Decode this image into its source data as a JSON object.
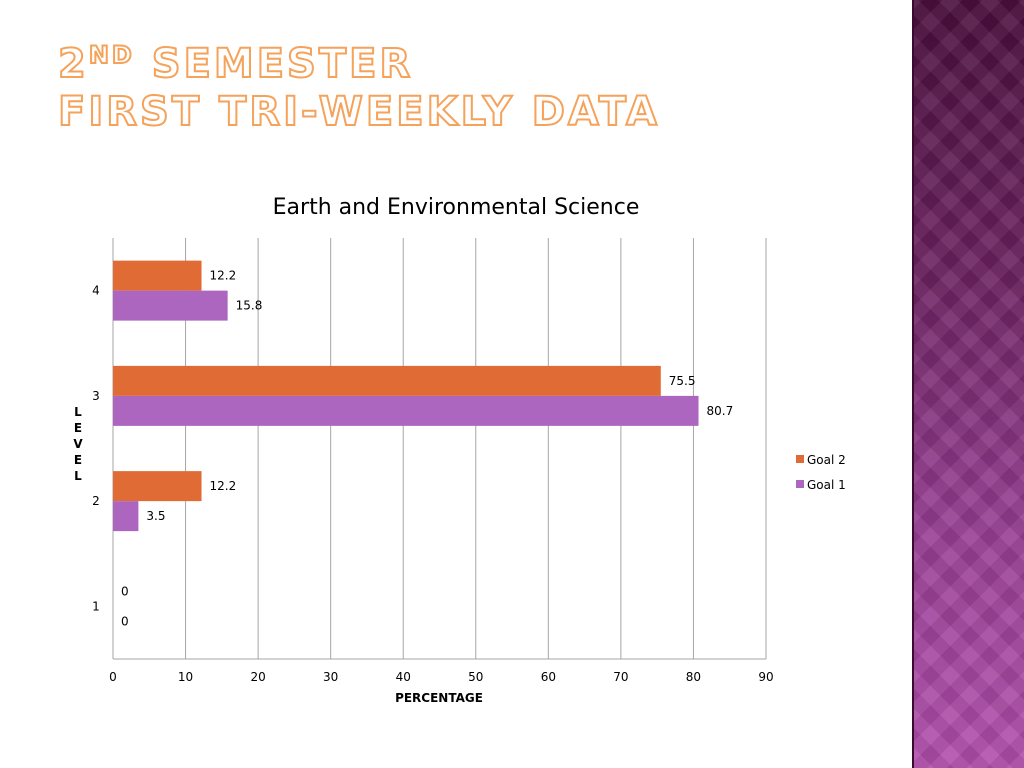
{
  "slide": {
    "title_lead": "2",
    "title_sup": "ND",
    "title_rest": " SEMESTER",
    "title_line2": "FIRST TRI-WEEKLY DATA"
  },
  "colors": {
    "goal2": "#e06b34",
    "goal1": "#ad66c0",
    "gridline": "#a6a6a6",
    "accent_outline": "#f5a25a"
  },
  "chart_data": {
    "type": "bar",
    "orientation": "horizontal",
    "title": "Earth and Environmental Science",
    "xlabel": "PERCENTAGE",
    "ylabel": "LEVEL",
    "xlim": [
      0,
      90
    ],
    "xticks": [
      0,
      10,
      20,
      30,
      40,
      50,
      60,
      70,
      80,
      90
    ],
    "categories": [
      "1",
      "2",
      "3",
      "4"
    ],
    "series": [
      {
        "name": "Goal 1",
        "values": [
          0,
          3.5,
          80.7,
          15.8
        ]
      },
      {
        "name": "Goal 2",
        "values": [
          0,
          12.2,
          75.5,
          12.2
        ]
      }
    ],
    "legend": [
      "Goal 2",
      "Goal 1"
    ],
    "legend_position": "right",
    "grid": true
  }
}
